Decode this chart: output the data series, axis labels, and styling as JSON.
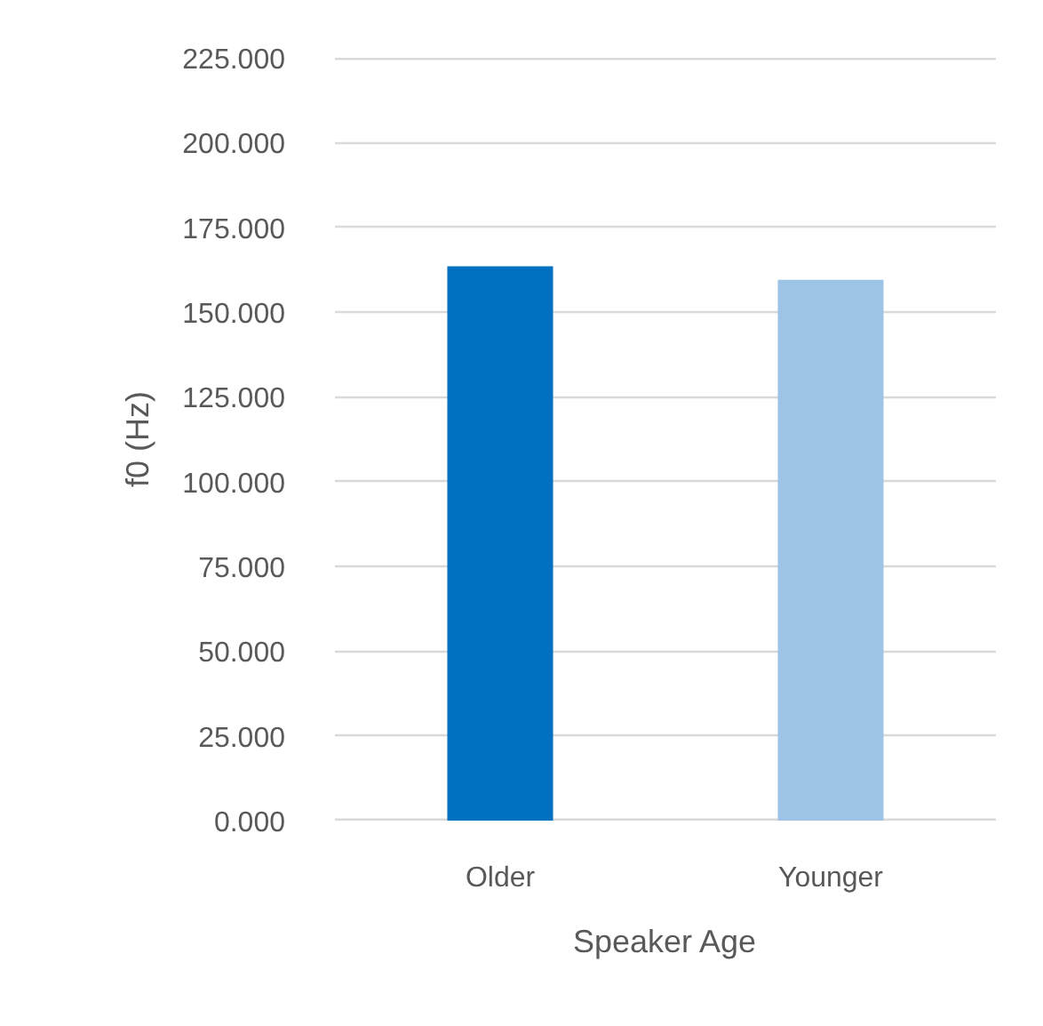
{
  "chart_data": {
    "type": "bar",
    "xlabel": "Speaker Age",
    "ylabel": "f0 (Hz)",
    "categories": [
      "Older",
      "Younger"
    ],
    "values": [
      163.5,
      159.5
    ],
    "colors": [
      "#0070c0",
      "#9dc3e6"
    ],
    "ylim": [
      0,
      225
    ],
    "yticks": [
      {
        "value": 0,
        "label": "0.000"
      },
      {
        "value": 25,
        "label": "25.000"
      },
      {
        "value": 50,
        "label": "50.000"
      },
      {
        "value": 75,
        "label": "75.000"
      },
      {
        "value": 100,
        "label": "100.000"
      },
      {
        "value": 125,
        "label": "125.000"
      },
      {
        "value": 150,
        "label": "150.000"
      },
      {
        "value": 175,
        "label": "175.000"
      },
      {
        "value": 200,
        "label": "200.000"
      },
      {
        "value": 225,
        "label": "225.000"
      }
    ],
    "grid": "y"
  }
}
